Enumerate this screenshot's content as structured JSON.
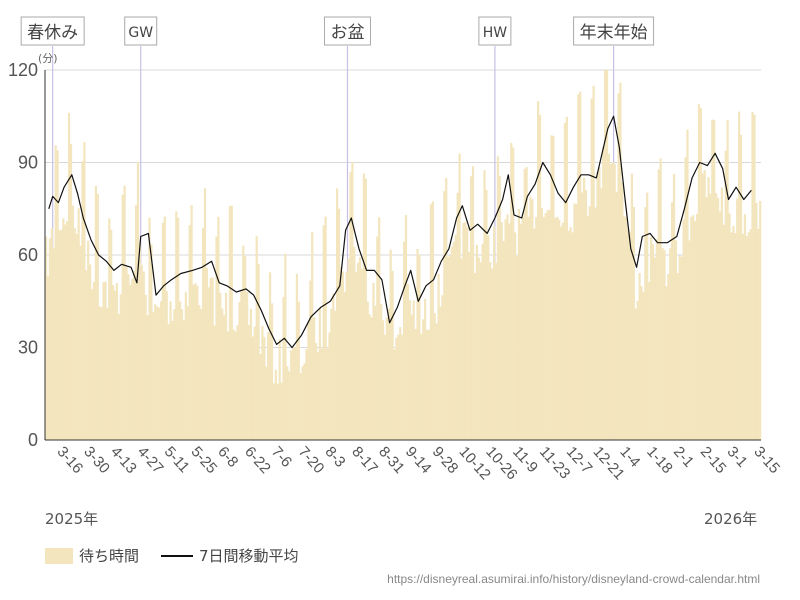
{
  "chart_data": {
    "type": "bar",
    "ylabel": "(分)",
    "ylim": [
      0,
      120
    ],
    "yticks": [
      0,
      30,
      60,
      90,
      120
    ],
    "x_start": "2025-03-10",
    "x_end": "2026-03-19",
    "xtick_labels": [
      {
        "date": "2025-03-16",
        "label": "3-16"
      },
      {
        "date": "2025-03-30",
        "label": "3-30"
      },
      {
        "date": "2025-04-13",
        "label": "4-13"
      },
      {
        "date": "2025-04-27",
        "label": "4-27"
      },
      {
        "date": "2025-05-11",
        "label": "5-11"
      },
      {
        "date": "2025-05-25",
        "label": "5-25"
      },
      {
        "date": "2025-06-08",
        "label": "6-8"
      },
      {
        "date": "2025-06-22",
        "label": "6-22"
      },
      {
        "date": "2025-07-06",
        "label": "7-6"
      },
      {
        "date": "2025-07-20",
        "label": "7-20"
      },
      {
        "date": "2025-08-03",
        "label": "8-3"
      },
      {
        "date": "2025-08-17",
        "label": "8-17"
      },
      {
        "date": "2025-08-31",
        "label": "8-31"
      },
      {
        "date": "2025-09-14",
        "label": "9-14"
      },
      {
        "date": "2025-09-28",
        "label": "9-28"
      },
      {
        "date": "2025-10-12",
        "label": "10-12"
      },
      {
        "date": "2025-10-26",
        "label": "10-26"
      },
      {
        "date": "2025-11-09",
        "label": "11-9"
      },
      {
        "date": "2025-11-23",
        "label": "11-23"
      },
      {
        "date": "2025-12-07",
        "label": "12-7"
      },
      {
        "date": "2025-12-21",
        "label": "12-21"
      },
      {
        "date": "2026-01-04",
        "label": "1-4"
      },
      {
        "date": "2026-01-18",
        "label": "1-18"
      },
      {
        "date": "2026-02-01",
        "label": "2-1"
      },
      {
        "date": "2026-02-15",
        "label": "2-15"
      },
      {
        "date": "2026-03-01",
        "label": "3-1"
      },
      {
        "date": "2026-03-15",
        "label": "3-15"
      }
    ],
    "events": [
      {
        "label": "春休み",
        "date": "2025-03-14"
      },
      {
        "label": "GW",
        "date": "2025-04-29"
      },
      {
        "label": "お盆",
        "date": "2025-08-15"
      },
      {
        "label": "HW",
        "date": "2025-10-31"
      },
      {
        "label": "年末年始",
        "date": "2026-01-01"
      }
    ],
    "years": {
      "start": "2025年",
      "end": "2026年"
    },
    "series": [
      {
        "name": "待ち時間",
        "kind": "bar",
        "color": "#f3e5bd",
        "anchors": [
          [
            "2025-03-10",
            66
          ],
          [
            "2025-03-17",
            80
          ],
          [
            "2025-03-24",
            82
          ],
          [
            "2025-03-31",
            68
          ],
          [
            "2025-04-07",
            58
          ],
          [
            "2025-04-14",
            55
          ],
          [
            "2025-04-21",
            57
          ],
          [
            "2025-04-28",
            65
          ],
          [
            "2025-05-05",
            48
          ],
          [
            "2025-05-12",
            52
          ],
          [
            "2025-05-19",
            53
          ],
          [
            "2025-05-26",
            56
          ],
          [
            "2025-06-02",
            57
          ],
          [
            "2025-06-09",
            50
          ],
          [
            "2025-06-16",
            50
          ],
          [
            "2025-06-23",
            48
          ],
          [
            "2025-06-30",
            42
          ],
          [
            "2025-07-07",
            33
          ],
          [
            "2025-07-14",
            33
          ],
          [
            "2025-07-21",
            34
          ],
          [
            "2025-07-28",
            42
          ],
          [
            "2025-08-04",
            45
          ],
          [
            "2025-08-11",
            60
          ],
          [
            "2025-08-18",
            68
          ],
          [
            "2025-08-25",
            55
          ],
          [
            "2025-09-01",
            53
          ],
          [
            "2025-09-08",
            40
          ],
          [
            "2025-09-15",
            51
          ],
          [
            "2025-09-22",
            45
          ],
          [
            "2025-09-29",
            52
          ],
          [
            "2025-10-06",
            60
          ],
          [
            "2025-10-13",
            74
          ],
          [
            "2025-10-20",
            70
          ],
          [
            "2025-10-27",
            70
          ],
          [
            "2025-11-03",
            74
          ],
          [
            "2025-11-10",
            75
          ],
          [
            "2025-11-17",
            79
          ],
          [
            "2025-11-24",
            89
          ],
          [
            "2025-12-01",
            80
          ],
          [
            "2025-12-08",
            82
          ],
          [
            "2025-12-15",
            86
          ],
          [
            "2025-12-22",
            88
          ],
          [
            "2025-12-29",
            103
          ],
          [
            "2026-01-05",
            88
          ],
          [
            "2026-01-12",
            57
          ],
          [
            "2026-01-19",
            66
          ],
          [
            "2026-01-26",
            65
          ],
          [
            "2026-02-02",
            65
          ],
          [
            "2026-02-09",
            80
          ],
          [
            "2026-02-16",
            88
          ],
          [
            "2026-02-23",
            90
          ],
          [
            "2026-03-02",
            80
          ],
          [
            "2026-03-09",
            80
          ],
          [
            "2026-03-16",
            80
          ]
        ]
      },
      {
        "name": "7日間移動平均",
        "kind": "line",
        "color": "#111111",
        "anchors": [
          [
            "2025-03-12",
            75
          ],
          [
            "2025-03-14",
            79
          ],
          [
            "2025-03-17",
            77
          ],
          [
            "2025-03-20",
            82
          ],
          [
            "2025-03-24",
            86
          ],
          [
            "2025-03-27",
            80
          ],
          [
            "2025-03-30",
            72
          ],
          [
            "2025-04-03",
            65
          ],
          [
            "2025-04-07",
            60
          ],
          [
            "2025-04-11",
            58
          ],
          [
            "2025-04-15",
            55
          ],
          [
            "2025-04-19",
            57
          ],
          [
            "2025-04-24",
            56
          ],
          [
            "2025-04-27",
            51
          ],
          [
            "2025-04-29",
            66
          ],
          [
            "2025-05-03",
            67
          ],
          [
            "2025-05-07",
            47
          ],
          [
            "2025-05-11",
            50
          ],
          [
            "2025-05-15",
            52
          ],
          [
            "2025-05-20",
            54
          ],
          [
            "2025-05-26",
            55
          ],
          [
            "2025-05-31",
            56
          ],
          [
            "2025-06-05",
            58
          ],
          [
            "2025-06-09",
            51
          ],
          [
            "2025-06-13",
            50
          ],
          [
            "2025-06-18",
            48
          ],
          [
            "2025-06-23",
            49
          ],
          [
            "2025-06-27",
            47
          ],
          [
            "2025-07-01",
            42
          ],
          [
            "2025-07-05",
            36
          ],
          [
            "2025-07-09",
            31
          ],
          [
            "2025-07-13",
            33
          ],
          [
            "2025-07-17",
            30
          ],
          [
            "2025-07-22",
            34
          ],
          [
            "2025-07-27",
            40
          ],
          [
            "2025-08-01",
            43
          ],
          [
            "2025-08-06",
            45
          ],
          [
            "2025-08-11",
            50
          ],
          [
            "2025-08-14",
            68
          ],
          [
            "2025-08-17",
            72
          ],
          [
            "2025-08-21",
            62
          ],
          [
            "2025-08-25",
            55
          ],
          [
            "2025-08-29",
            55
          ],
          [
            "2025-09-02",
            52
          ],
          [
            "2025-09-06",
            38
          ],
          [
            "2025-09-10",
            43
          ],
          [
            "2025-09-14",
            50
          ],
          [
            "2025-09-17",
            55
          ],
          [
            "2025-09-21",
            45
          ],
          [
            "2025-09-25",
            50
          ],
          [
            "2025-09-29",
            52
          ],
          [
            "2025-10-03",
            58
          ],
          [
            "2025-10-07",
            62
          ],
          [
            "2025-10-11",
            72
          ],
          [
            "2025-10-14",
            76
          ],
          [
            "2025-10-18",
            68
          ],
          [
            "2025-10-22",
            70
          ],
          [
            "2025-10-27",
            67
          ],
          [
            "2025-10-31",
            72
          ],
          [
            "2025-11-04",
            78
          ],
          [
            "2025-11-07",
            86
          ],
          [
            "2025-11-10",
            73
          ],
          [
            "2025-11-14",
            72
          ],
          [
            "2025-11-17",
            79
          ],
          [
            "2025-11-21",
            83
          ],
          [
            "2025-11-25",
            90
          ],
          [
            "2025-11-29",
            86
          ],
          [
            "2025-12-03",
            80
          ],
          [
            "2025-12-07",
            77
          ],
          [
            "2025-12-11",
            82
          ],
          [
            "2025-12-15",
            86
          ],
          [
            "2025-12-19",
            86
          ],
          [
            "2025-12-23",
            85
          ],
          [
            "2025-12-26",
            93
          ],
          [
            "2025-12-29",
            101
          ],
          [
            "2026-01-01",
            105
          ],
          [
            "2026-01-04",
            95
          ],
          [
            "2026-01-07",
            78
          ],
          [
            "2026-01-10",
            62
          ],
          [
            "2026-01-13",
            56
          ],
          [
            "2026-01-16",
            66
          ],
          [
            "2026-01-20",
            67
          ],
          [
            "2026-01-24",
            64
          ],
          [
            "2026-01-29",
            64
          ],
          [
            "2026-02-03",
            66
          ],
          [
            "2026-02-07",
            75
          ],
          [
            "2026-02-11",
            85
          ],
          [
            "2026-02-15",
            90
          ],
          [
            "2026-02-19",
            89
          ],
          [
            "2026-02-23",
            93
          ],
          [
            "2026-02-27",
            88
          ],
          [
            "2026-03-02",
            78
          ],
          [
            "2026-03-06",
            82
          ],
          [
            "2026-03-10",
            78
          ],
          [
            "2026-03-14",
            81
          ]
        ]
      }
    ]
  },
  "legend": {
    "bar_label": "待ち時間",
    "line_label": "7日間移動平均"
  },
  "source": "https://disneyreal.asumirai.info/history/disneyland-crowd-calendar.html"
}
